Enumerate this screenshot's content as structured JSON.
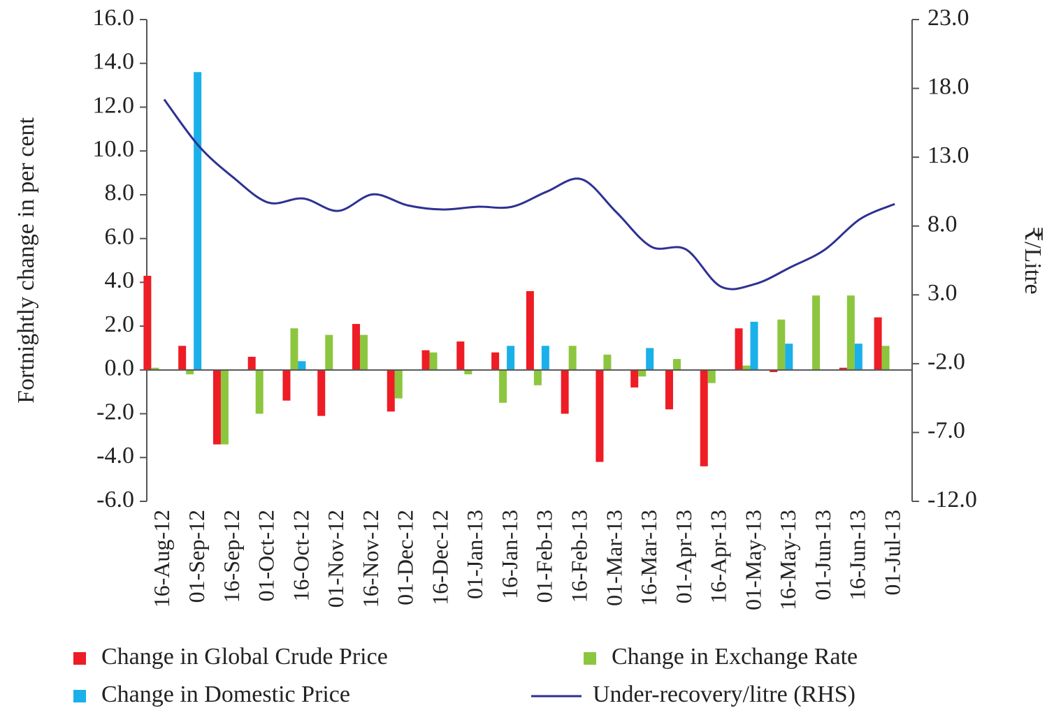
{
  "chart_data": {
    "type": "bar-line",
    "categories": [
      "16-Aug-12",
      "01-Sep-12",
      "16-Sep-12",
      "01-Oct-12",
      "16-Oct-12",
      "01-Nov-12",
      "16-Nov-12",
      "01-Dec-12",
      "16-Dec-12",
      "01-Jan-13",
      "16-Jan-13",
      "01-Feb-13",
      "16-Feb-13",
      "01-Mar-13",
      "16-Mar-13",
      "01-Apr-13",
      "16-Apr-13",
      "01-May-13",
      "16-May-13",
      "01-Jun-13",
      "16-Jun-13",
      "01-Jul-13"
    ],
    "series": [
      {
        "name": "Change in Global Crude Price",
        "color": "#ee1c25",
        "kind": "bar",
        "values": [
          4.3,
          1.1,
          -3.4,
          0.6,
          -1.4,
          -2.1,
          2.1,
          -1.9,
          0.9,
          1.3,
          0.8,
          3.6,
          -2.0,
          -4.2,
          -0.8,
          -1.8,
          -4.4,
          1.9,
          -0.1,
          0,
          0.1,
          2.4
        ]
      },
      {
        "name": "Change in Exchange Rate",
        "color": "#8cc63f",
        "kind": "bar",
        "values": [
          0.1,
          -0.2,
          -3.4,
          -2.0,
          1.9,
          1.6,
          1.6,
          -1.3,
          0.8,
          -0.2,
          -1.5,
          -0.7,
          1.1,
          0.7,
          -0.3,
          0.5,
          -0.6,
          0.2,
          2.3,
          3.4,
          3.4,
          1.1
        ]
      },
      {
        "name": "Change in Domestic Price",
        "color": "#1ab0ea",
        "kind": "bar",
        "values": [
          0,
          13.6,
          0,
          0,
          0.4,
          0,
          0,
          0,
          0,
          0,
          1.1,
          1.1,
          0,
          0,
          1.0,
          0,
          0,
          2.2,
          1.2,
          0,
          1.2,
          0
        ]
      },
      {
        "name": "Under-recovery/litre (RHS)",
        "color": "#2e3192",
        "kind": "line",
        "axis": "y2",
        "values": [
          17.2,
          13.8,
          11.5,
          9.7,
          10.0,
          9.1,
          10.3,
          9.5,
          9.2,
          9.4,
          9.4,
          10.5,
          11.4,
          9.0,
          6.5,
          6.3,
          3.6,
          3.8,
          5.0,
          6.3,
          8.5,
          9.6
        ]
      }
    ],
    "ylabel": "Fortnightly change in per cent",
    "y2label": "₹/Litre",
    "ylim": [
      -6,
      16
    ],
    "yticks": [
      {
        "value": -6,
        "label": "-6.0"
      },
      {
        "value": -4,
        "label": "-4.0"
      },
      {
        "value": -2,
        "label": "-2.0"
      },
      {
        "value": 0,
        "label": "0.0"
      },
      {
        "value": 2,
        "label": "2.0"
      },
      {
        "value": 4,
        "label": "4.0"
      },
      {
        "value": 6,
        "label": "6.0"
      },
      {
        "value": 8,
        "label": "8.0"
      },
      {
        "value": 10,
        "label": "10.0"
      },
      {
        "value": 12,
        "label": "12.0"
      },
      {
        "value": 14,
        "label": "14.0"
      },
      {
        "value": 16,
        "label": "16.0"
      }
    ],
    "y2lim": [
      -12,
      23
    ],
    "y2ticks": [
      {
        "value": -12,
        "label": "-12.0"
      },
      {
        "value": -7,
        "label": "-7.0"
      },
      {
        "value": -2,
        "label": "-2.0"
      },
      {
        "value": 3,
        "label": "3.0"
      },
      {
        "value": 8,
        "label": "8.0"
      },
      {
        "value": 13,
        "label": "13.0"
      },
      {
        "value": 18,
        "label": "18.0"
      },
      {
        "value": 23,
        "label": "23.0"
      }
    ],
    "grid": false,
    "legend": "bottom"
  }
}
